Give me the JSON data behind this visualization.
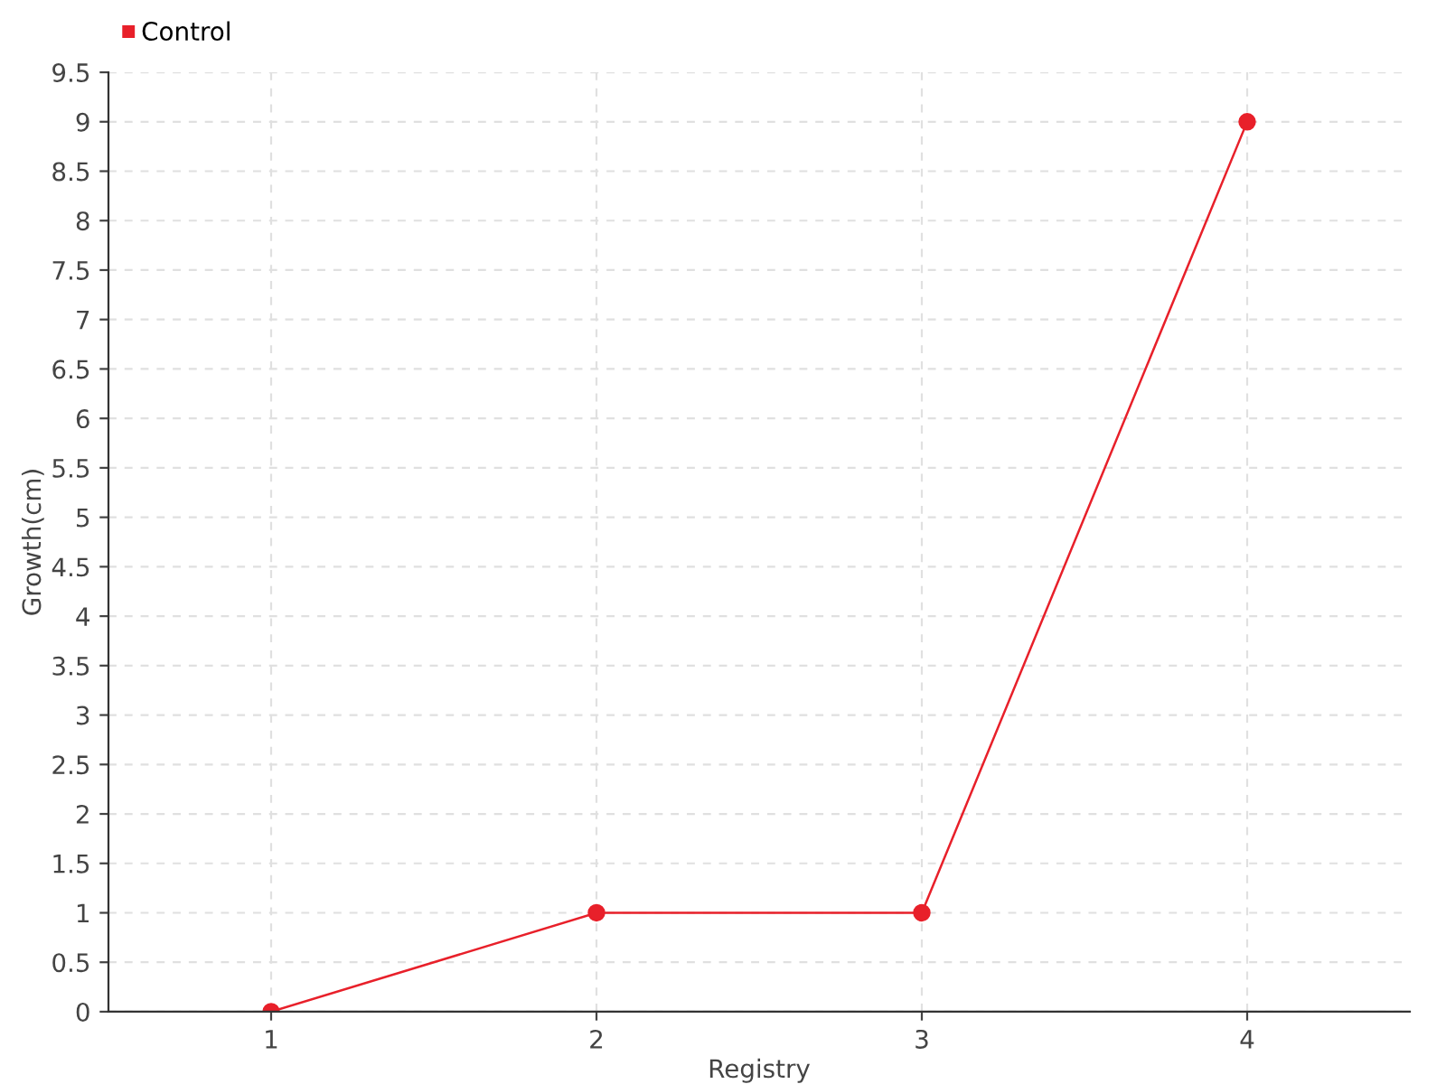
{
  "chart_data": {
    "type": "line",
    "xlabel": "Registry",
    "ylabel": "Growth(cm)",
    "categories": [
      "1",
      "2",
      "3",
      "4"
    ],
    "series": [
      {
        "name": "Control",
        "color": "#e8202a",
        "values": [
          0,
          1,
          1,
          9
        ]
      }
    ],
    "ylim": [
      0,
      9.5
    ],
    "yticks": [
      0,
      0.5,
      1,
      1.5,
      2,
      2.5,
      3,
      3.5,
      4,
      4.5,
      5,
      5.5,
      6,
      6.5,
      7,
      7.5,
      8,
      8.5,
      9,
      9.5
    ],
    "grid": true,
    "legend": "top left",
    "marker": "circle",
    "line_style": "solid"
  }
}
